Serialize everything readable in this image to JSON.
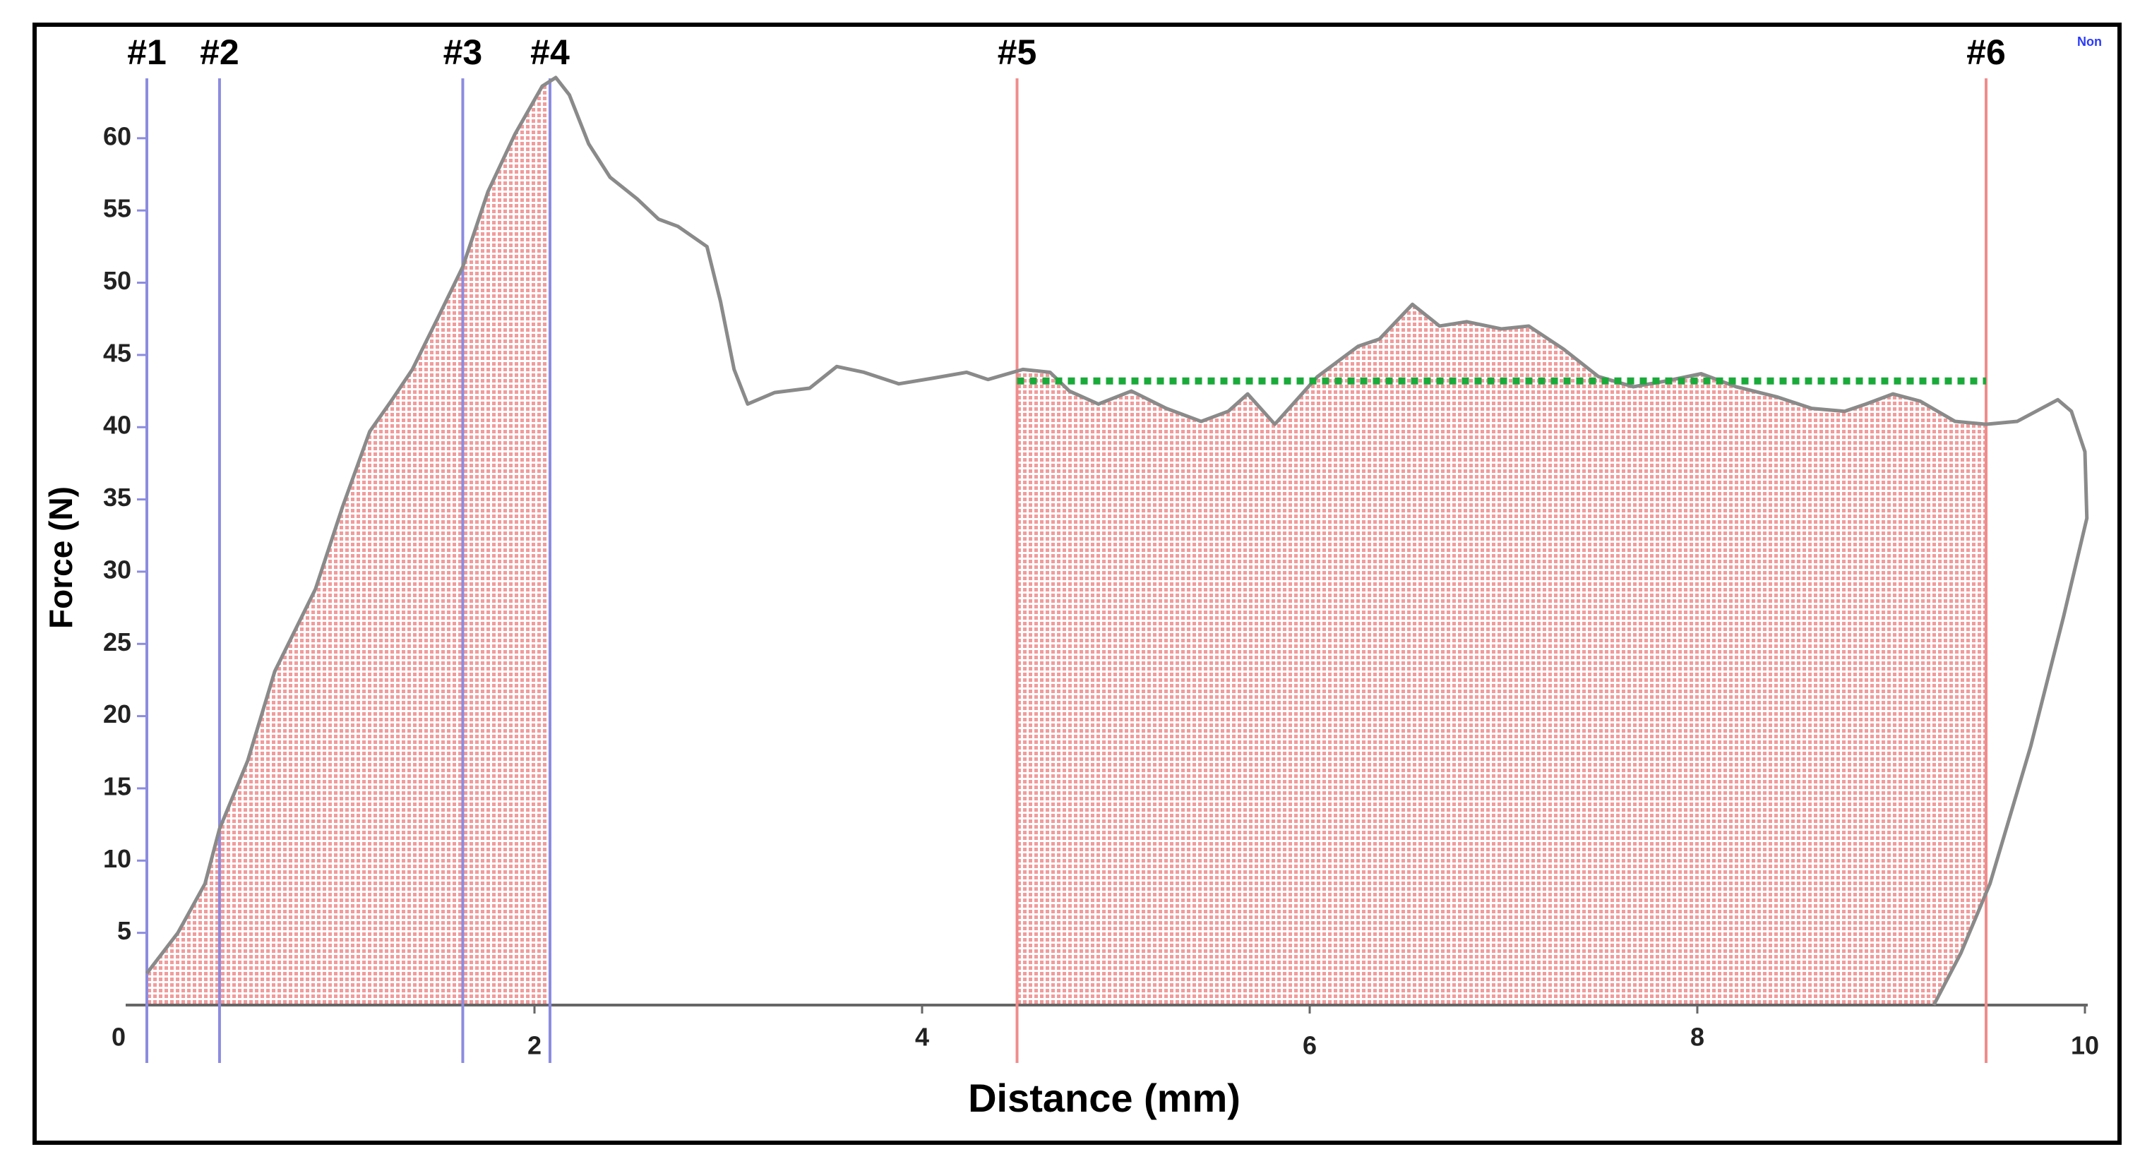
{
  "chart_data": {
    "type": "line",
    "xlabel": "Distance (mm)",
    "ylabel": "Force (N)",
    "corner_text": "Non",
    "x": [
      0,
      0.16,
      0.3,
      0.375,
      0.52,
      0.66,
      0.87,
      1.01,
      1.15,
      1.26,
      1.37,
      1.51,
      1.63,
      1.76,
      1.9,
      2.04,
      2.11,
      2.18,
      2.28,
      2.39,
      2.53,
      2.64,
      2.74,
      2.89,
      2.96,
      3.03,
      3.1,
      3.24,
      3.42,
      3.56,
      3.7,
      3.88,
      4.06,
      4.23,
      4.34,
      4.52,
      4.66,
      4.76,
      4.91,
      5.08,
      5.26,
      5.44,
      5.58,
      5.68,
      5.82,
      6.04,
      6.25,
      6.36,
      6.53,
      6.67,
      6.81,
      6.99,
      7.13,
      7.31,
      7.49,
      7.67,
      7.84,
      8.02,
      8.2,
      8.41,
      8.59,
      8.76,
      8.87,
      9.01,
      9.15,
      9.33,
      9.49,
      9.65,
      9.86,
      9.93,
      10.0,
      10.01,
      9.89,
      9.72,
      9.51,
      9.36,
      9.22
    ],
    "values": [
      2.2,
      5,
      8.4,
      12.2,
      16.9,
      23.1,
      28.8,
      34.5,
      39.7,
      41.8,
      44,
      47.8,
      51.1,
      56.3,
      60.3,
      63.6,
      64.2,
      63,
      59.6,
      57.3,
      55.8,
      54.4,
      53.9,
      52.5,
      48.7,
      44,
      41.6,
      42.4,
      42.7,
      44.2,
      43.8,
      43,
      43.4,
      43.8,
      43.3,
      44,
      43.8,
      42.5,
      41.6,
      42.5,
      41.3,
      40.4,
      41.1,
      42.3,
      40.2,
      43.5,
      45.6,
      46.1,
      48.5,
      47,
      47.3,
      46.8,
      47,
      45.4,
      43.5,
      42.8,
      43.2,
      43.7,
      42.8,
      42.1,
      41.3,
      41.1,
      41.6,
      42.3,
      41.8,
      40.4,
      40.2,
      40.4,
      41.9,
      41.1,
      38.3,
      33.7,
      26.9,
      17.9,
      8.4,
      3.6,
      0
    ],
    "color": "#8a8a8a",
    "xlim": [
      0,
      10
    ],
    "ylim": [
      0,
      65
    ],
    "xticks": [
      0,
      2,
      4,
      6,
      8,
      10
    ],
    "yticks": [
      5,
      10,
      15,
      20,
      25,
      30,
      35,
      40,
      45,
      50,
      55,
      60
    ],
    "markers": [
      {
        "label": "#1",
        "x": 0,
        "color": "#8c8ce0"
      },
      {
        "label": "#2",
        "x": 0.375,
        "color": "#8c8ce0"
      },
      {
        "label": "#3",
        "x": 1.63,
        "color": "#8c8ce0"
      },
      {
        "label": "#4",
        "x": 2.08,
        "color": "#8c8ce0"
      },
      {
        "label": "#5",
        "x": 4.49,
        "color": "#f08c8c"
      },
      {
        "label": "#6",
        "x": 9.49,
        "color": "#f08c8c"
      }
    ],
    "reference_line": {
      "y": 43.2,
      "x_range": [
        4.49,
        9.49
      ],
      "color": "#1aaa3a"
    },
    "fill_color": "#f29b9b"
  }
}
